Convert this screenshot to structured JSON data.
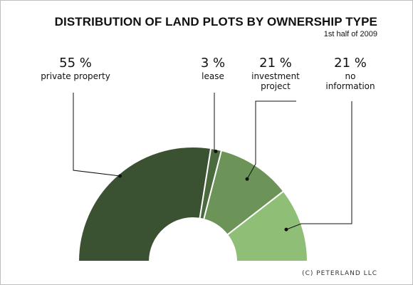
{
  "title": "DISTRIBUTION OF LAND PLOTS BY OWNERSHIP TYPE",
  "subtitle": "1st half of 2009",
  "copyright": "(C) PETERLAND LLC",
  "chart_data": {
    "type": "pie",
    "style": "half-donut",
    "unit": "%",
    "slices": [
      {
        "pct_label": "55 %",
        "name": "private property",
        "value": 55,
        "color": "#3a5232"
      },
      {
        "pct_label": "3 %",
        "name": "lease",
        "value": 3,
        "color": "#4b6a3e"
      },
      {
        "pct_label": "21 %",
        "name": "investment project",
        "value": 21,
        "color": "#6c9458"
      },
      {
        "pct_label": "21 %",
        "name": "no information",
        "value": 21,
        "color": "#8fbf76"
      }
    ]
  }
}
